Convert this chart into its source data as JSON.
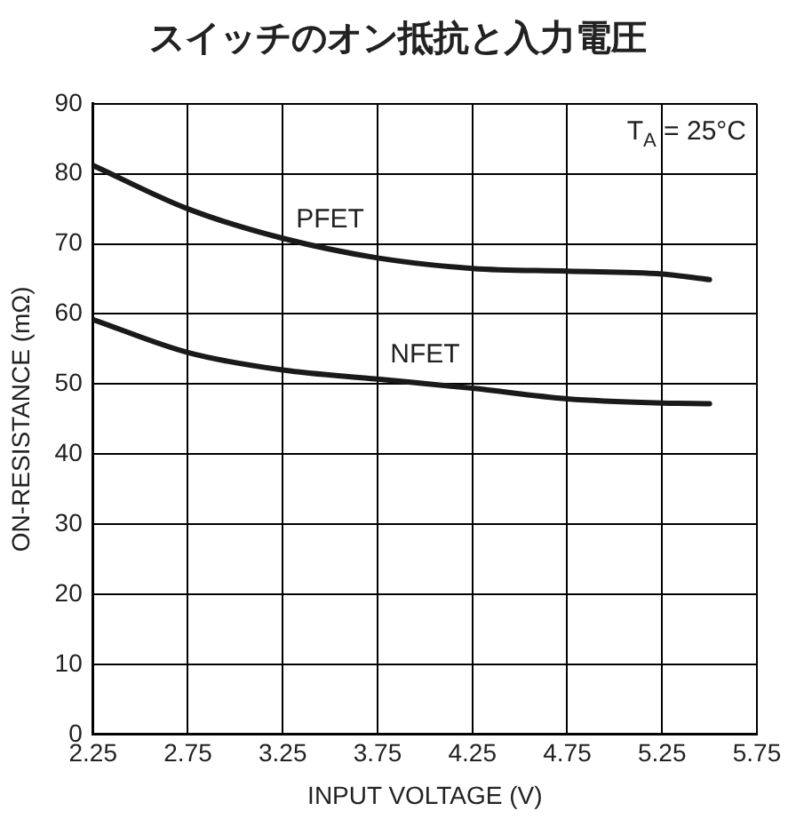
{
  "chart_data": {
    "type": "line",
    "title": "スイッチのオン抵抗と入力電圧",
    "xlabel": "INPUT VOLTAGE (V)",
    "ylabel": "ON-RESISTANCE (mΩ)",
    "x": [
      2.25,
      2.75,
      3.25,
      3.75,
      4.25,
      4.75,
      5.25,
      5.5
    ],
    "series": [
      {
        "name": "PFET",
        "color": "#1a1a1a",
        "values": [
          81.2,
          75.0,
          70.8,
          68.0,
          66.5,
          66.1,
          65.7,
          64.9
        ]
      },
      {
        "name": "NFET",
        "color": "#1a1a1a",
        "values": [
          59.2,
          54.5,
          52.0,
          50.7,
          49.4,
          47.9,
          47.3,
          47.2
        ]
      }
    ],
    "xlim": [
      2.25,
      5.75
    ],
    "xticks": [
      2.25,
      2.75,
      3.25,
      3.75,
      4.25,
      4.75,
      5.25,
      5.75
    ],
    "ylim": [
      0,
      90
    ],
    "yticks": [
      0,
      10,
      20,
      30,
      40,
      50,
      60,
      70,
      80,
      90
    ],
    "annotations": [
      "T$_{A}$ = 25°C"
    ],
    "grid": true,
    "legend": false,
    "marker": "none",
    "line_style": "solid"
  }
}
